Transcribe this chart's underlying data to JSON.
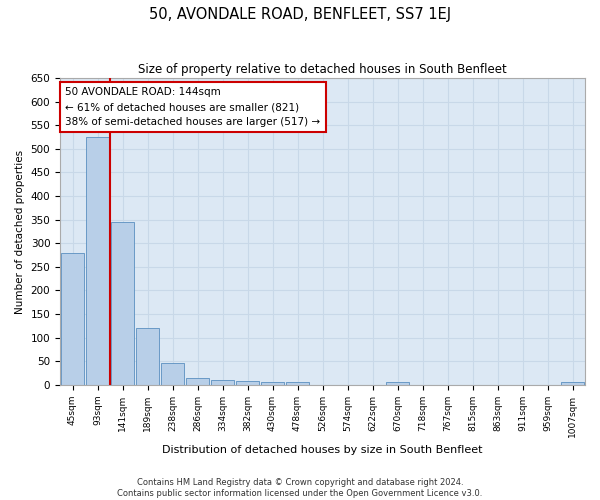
{
  "title": "50, AVONDALE ROAD, BENFLEET, SS7 1EJ",
  "subtitle": "Size of property relative to detached houses in South Benfleet",
  "xlabel": "Distribution of detached houses by size in South Benfleet",
  "ylabel": "Number of detached properties",
  "footer_line1": "Contains HM Land Registry data © Crown copyright and database right 2024.",
  "footer_line2": "Contains public sector information licensed under the Open Government Licence v3.0.",
  "annotation_title": "50 AVONDALE ROAD: 144sqm",
  "annotation_line1": "← 61% of detached houses are smaller (821)",
  "annotation_line2": "38% of semi-detached houses are larger (517) →",
  "bar_categories": [
    "45sqm",
    "93sqm",
    "141sqm",
    "189sqm",
    "238sqm",
    "286sqm",
    "334sqm",
    "382sqm",
    "430sqm",
    "478sqm",
    "526sqm",
    "574sqm",
    "622sqm",
    "670sqm",
    "718sqm",
    "767sqm",
    "815sqm",
    "863sqm",
    "911sqm",
    "959sqm",
    "1007sqm"
  ],
  "bar_values": [
    280,
    525,
    345,
    120,
    47,
    15,
    10,
    8,
    5,
    5,
    0,
    0,
    0,
    6,
    0,
    0,
    0,
    0,
    0,
    0,
    5
  ],
  "bar_color": "#b8cfe8",
  "bar_edge_color": "#5a8fc0",
  "grid_color": "#c8d8e8",
  "background_color": "#dce8f4",
  "ylim": [
    0,
    650
  ],
  "yticks": [
    0,
    50,
    100,
    150,
    200,
    250,
    300,
    350,
    400,
    450,
    500,
    550,
    600,
    650
  ],
  "red_line_color": "#cc0000",
  "annotation_box_color": "#cc0000",
  "figsize": [
    6.0,
    5.0
  ],
  "dpi": 100
}
